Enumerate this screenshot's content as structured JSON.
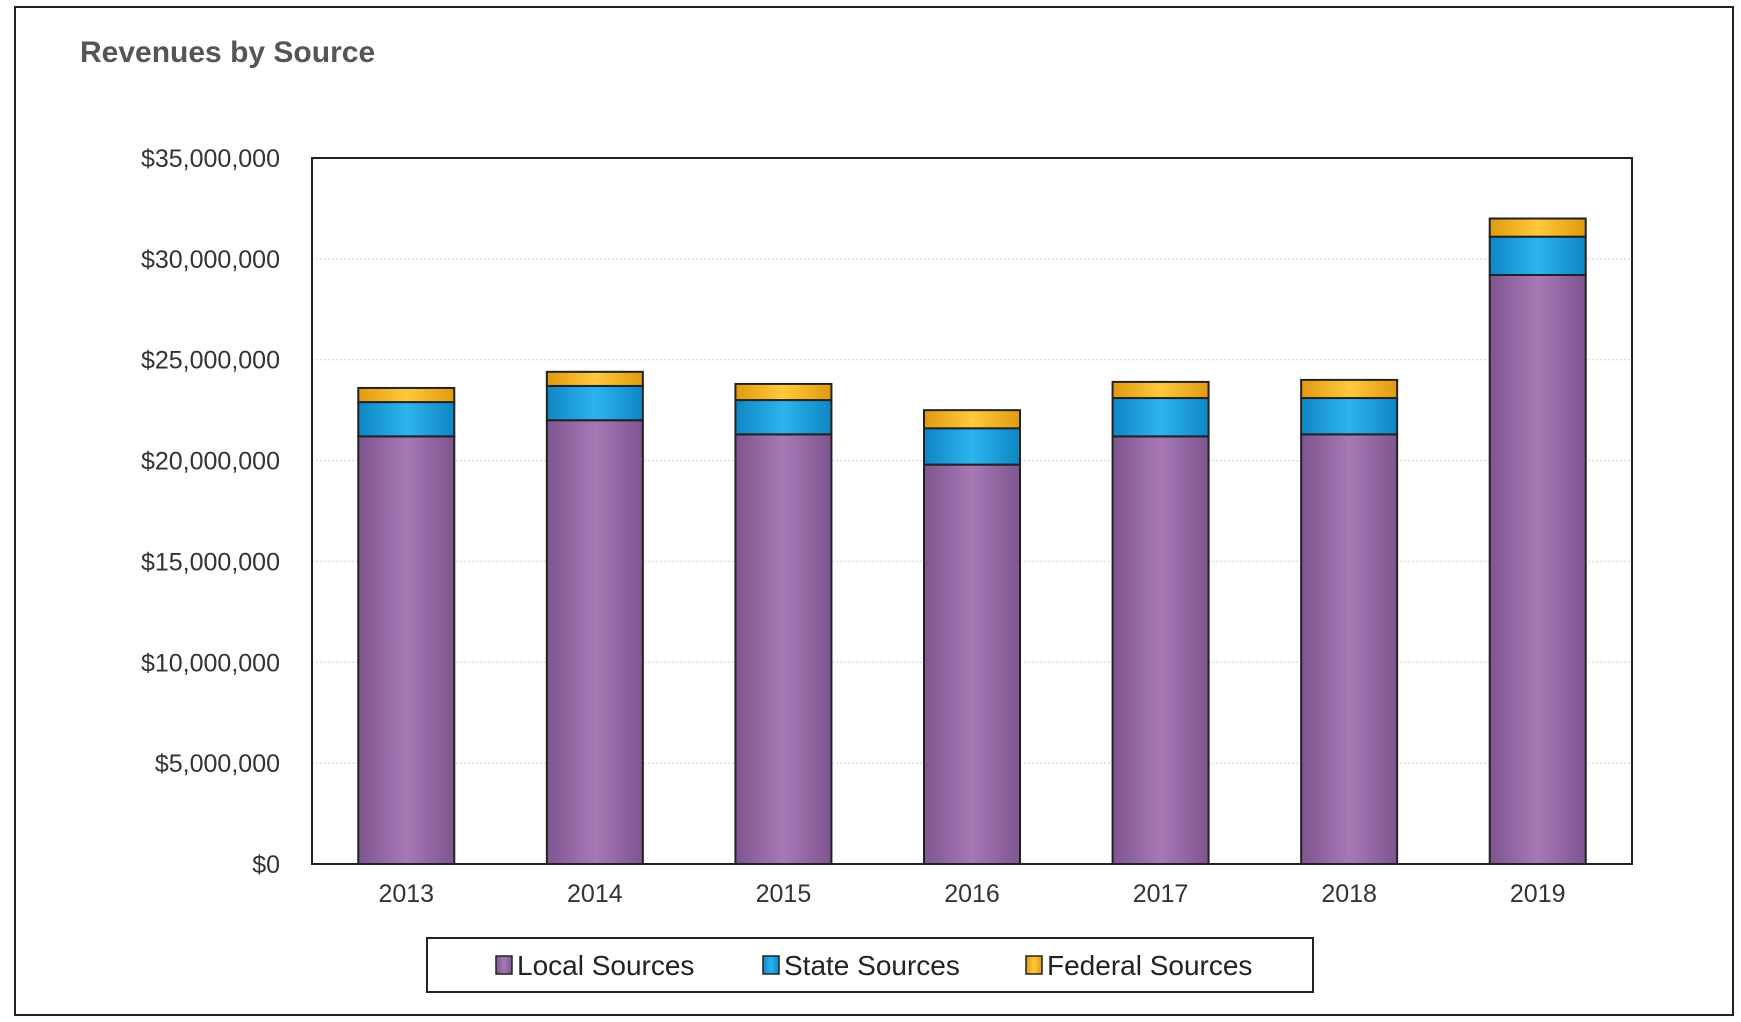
{
  "chart_data": {
    "type": "bar",
    "stacked": true,
    "title": "Revenues by Source",
    "xlabel": "",
    "ylabel": "",
    "categories": [
      "2013",
      "2014",
      "2015",
      "2016",
      "2017",
      "2018",
      "2019"
    ],
    "series": [
      {
        "name": "Local Sources",
        "color": "#9a6ba8",
        "values": [
          21200000,
          22000000,
          21300000,
          19800000,
          21200000,
          21300000,
          29200000
        ]
      },
      {
        "name": "State Sources",
        "color": "#1aa3e0",
        "values": [
          1700000,
          1700000,
          1700000,
          1800000,
          1900000,
          1800000,
          1900000
        ]
      },
      {
        "name": "Federal Sources",
        "color": "#f5b61f",
        "values": [
          700000,
          700000,
          800000,
          900000,
          800000,
          900000,
          900000
        ]
      }
    ],
    "ylim": [
      0,
      35000000
    ],
    "yticks": [
      0,
      5000000,
      10000000,
      15000000,
      20000000,
      25000000,
      30000000,
      35000000
    ],
    "ytick_labels": [
      "$0",
      "$5,000,000",
      "$10,000,000",
      "$15,000,000",
      "$20,000,000",
      "$25,000,000",
      "$30,000,000",
      "$35,000,000"
    ],
    "grid": true,
    "legend_position": "bottom"
  }
}
